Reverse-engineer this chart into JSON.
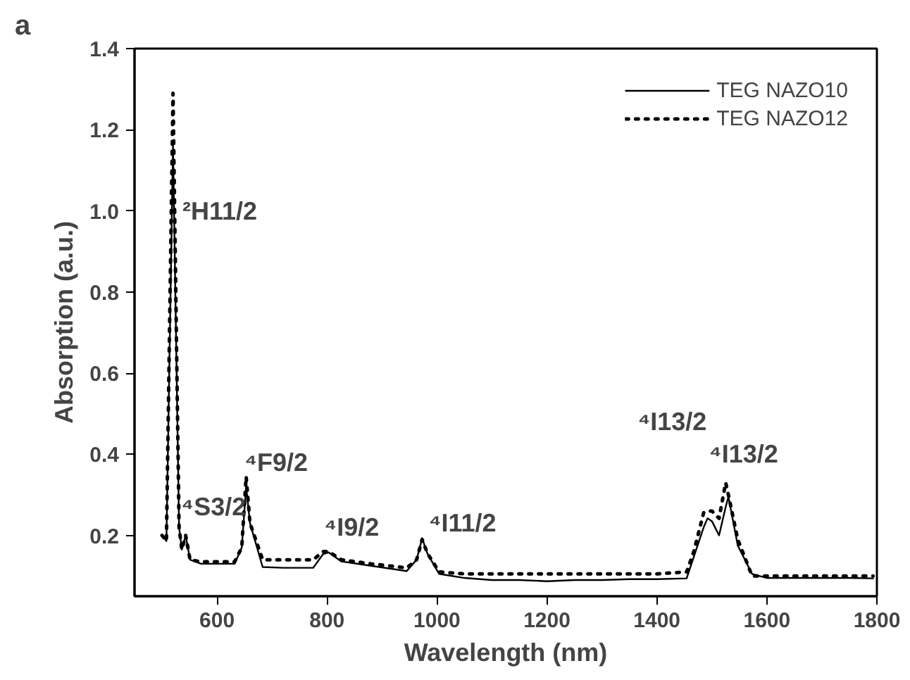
{
  "chart_data": {
    "type": "line",
    "xlabel": "Wavelength (nm)",
    "ylabel": "Absorption (a.u.)",
    "x": [
      500,
      508,
      520,
      531,
      536,
      543,
      551,
      571,
      600,
      632,
      645,
      653,
      660,
      683,
      720,
      775,
      793,
      803,
      826,
      880,
      945,
      963,
      973,
      983,
      1004,
      1050,
      1100,
      1150,
      1200,
      1250,
      1300,
      1350,
      1400,
      1454,
      1467,
      1485,
      1492,
      1500,
      1513,
      1525,
      1530,
      1547,
      1573,
      1600,
      1650,
      1700,
      1750,
      1793
    ],
    "series": [
      {
        "name": "TEG NAZO10",
        "color": "#000000",
        "line_style": "solid",
        "values": [
          0.2,
          0.186,
          1.16,
          0.22,
          0.165,
          0.2,
          0.14,
          0.13,
          0.13,
          0.13,
          0.17,
          0.32,
          0.23,
          0.122,
          0.12,
          0.12,
          0.154,
          0.158,
          0.136,
          0.125,
          0.112,
          0.14,
          0.193,
          0.154,
          0.105,
          0.095,
          0.09,
          0.09,
          0.087,
          0.09,
          0.09,
          0.092,
          0.092,
          0.094,
          0.147,
          0.22,
          0.242,
          0.235,
          0.2,
          0.27,
          0.295,
          0.175,
          0.105,
          0.095,
          0.095,
          0.095,
          0.095,
          0.094
        ]
      },
      {
        "name": "TEG NAZO12",
        "color": "#000000",
        "line_style": "dotted",
        "values": [
          0.2,
          0.186,
          1.29,
          0.22,
          0.165,
          0.2,
          0.14,
          0.135,
          0.135,
          0.135,
          0.17,
          0.345,
          0.23,
          0.14,
          0.14,
          0.14,
          0.16,
          0.16,
          0.14,
          0.13,
          0.12,
          0.14,
          0.19,
          0.155,
          0.11,
          0.105,
          0.105,
          0.105,
          0.105,
          0.105,
          0.105,
          0.105,
          0.105,
          0.11,
          0.16,
          0.256,
          0.26,
          0.26,
          0.242,
          0.33,
          0.3,
          0.19,
          0.1,
          0.1,
          0.1,
          0.1,
          0.1,
          0.1
        ]
      }
    ],
    "xlim": [
      450,
      1800
    ],
    "ylim": [
      0.05,
      1.4
    ],
    "xticks": [
      600,
      800,
      1000,
      1200,
      1400,
      1600,
      1800
    ],
    "yticks": [
      0.2,
      0.4,
      0.6,
      0.8,
      {
        "value": 1,
        "label": "1.0"
      },
      1.2,
      1.4
    ],
    "grid": false,
    "legend": "top right",
    "marker": "none",
    "annotations": [
      "a",
      "²H11/2",
      "⁴S3/2",
      "⁴F9/2",
      "⁴I9/2",
      "⁴I11/2",
      "⁴I13/2",
      "⁴I13/2"
    ]
  }
}
